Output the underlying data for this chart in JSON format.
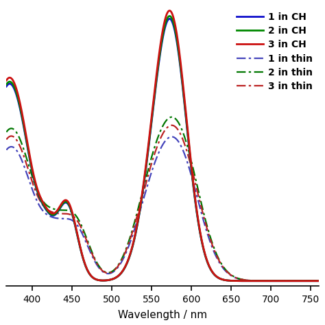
{
  "xlabel": "Wavelength / nm",
  "xlim": [
    368,
    760
  ],
  "ylim": [
    -0.02,
    1.08
  ],
  "xticks": [
    400,
    450,
    500,
    550,
    600,
    650,
    700,
    750
  ],
  "legend_entries": [
    {
      "label": "1 in CH",
      "color": "#1010cc",
      "linestyle": "-",
      "lw": 2.0
    },
    {
      "label": "2 in CH",
      "color": "#008800",
      "linestyle": "-",
      "lw": 2.0
    },
    {
      "label": "3 in CH",
      "color": "#cc1111",
      "linestyle": "-",
      "lw": 2.0
    },
    {
      "label": "1 in thin",
      "color": "#4444bb",
      "linestyle": "-.",
      "lw": 1.6
    },
    {
      "label": "2 in thin",
      "color": "#007700",
      "linestyle": "-.",
      "lw": 1.6
    },
    {
      "label": "3 in thin",
      "color": "#bb2222",
      "linestyle": "-.",
      "lw": 1.6
    }
  ],
  "colors_sol": [
    "#1010cc",
    "#008800",
    "#cc1111"
  ],
  "colors_film": [
    "#4444bb",
    "#007700",
    "#bb2222"
  ],
  "background": "#ffffff"
}
